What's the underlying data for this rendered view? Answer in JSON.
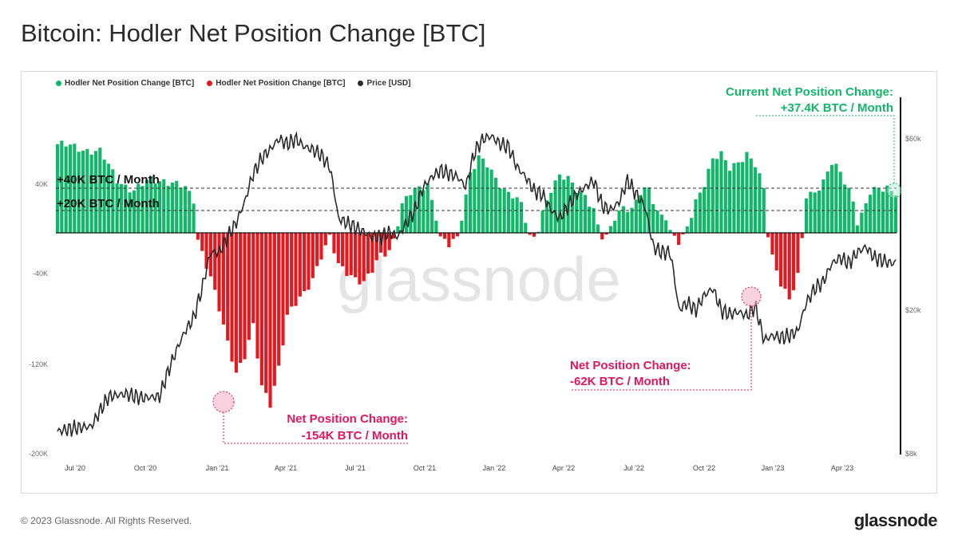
{
  "title": "Bitcoin: Hodler Net Position Change [BTC]",
  "footer": {
    "copyright": "© 2023 Glassnode. All Rights Reserved.",
    "logo": "glassnode"
  },
  "watermark": "glassnode",
  "colors": {
    "positive": "#11b86a",
    "negative": "#e3191f",
    "price": "#2a2a2a",
    "annotation_red": "#e0165e",
    "annotation_green": "#13b56b"
  },
  "chart_data": {
    "type": "bar",
    "legend": [
      {
        "name": "Hodler Net Position Change [BTC]",
        "color": "#11b86a"
      },
      {
        "name": "Hodler Net Position Change [BTC]",
        "color": "#e3191f"
      },
      {
        "name": "Price [USD]",
        "color": "#2a2a2a"
      }
    ],
    "x_ticks": [
      "Jul '20",
      "Oct '20",
      "Jan '21",
      "Apr '21",
      "Jul '21",
      "Oct '21",
      "Jan '22",
      "Apr '22",
      "Jul '22",
      "Oct '22",
      "Jan '23",
      "Apr '23"
    ],
    "y_left_ticks": [
      "40K",
      "-40K",
      "-120K",
      "-200K"
    ],
    "y_right_ticks": [
      "$60k",
      "$20k",
      "$8k"
    ],
    "ylim_left": [
      -200000,
      80000
    ],
    "reference_lines": [
      "+40K BTC / Month",
      "+20K BTC / Month"
    ],
    "annotations": [
      {
        "line1": "Net Position Change:",
        "line2": "-154K BTC / Month"
      },
      {
        "line1": "Net Position Change:",
        "line2": "-62K BTC / Month"
      },
      {
        "line1": "Current Net Position Change:",
        "line2": "+37.4K BTC / Month"
      }
    ],
    "net_position_anchors": [
      [
        0,
        80
      ],
      [
        10,
        73
      ],
      [
        14,
        48
      ],
      [
        18,
        38
      ],
      [
        22,
        48
      ],
      [
        25,
        48
      ],
      [
        30,
        40
      ],
      [
        32,
        30
      ],
      [
        33,
        -5
      ],
      [
        36,
        -40
      ],
      [
        40,
        -100
      ],
      [
        42,
        -125
      ],
      [
        44,
        -110
      ],
      [
        46,
        -85
      ],
      [
        48,
        -140
      ],
      [
        50,
        -154
      ],
      [
        52,
        -120
      ],
      [
        54,
        -75
      ],
      [
        56,
        -65
      ],
      [
        58,
        -55
      ],
      [
        60,
        -40
      ],
      [
        62,
        -20
      ],
      [
        64,
        -5
      ],
      [
        66,
        -30
      ],
      [
        68,
        -35
      ],
      [
        70,
        -40
      ],
      [
        72,
        -45
      ],
      [
        74,
        -35
      ],
      [
        76,
        -20
      ],
      [
        78,
        -15
      ],
      [
        79,
        -5
      ],
      [
        81,
        25
      ],
      [
        83,
        35
      ],
      [
        85,
        40
      ],
      [
        87,
        45
      ],
      [
        88,
        30
      ],
      [
        89,
        15
      ],
      [
        90,
        -5
      ],
      [
        92,
        -12
      ],
      [
        94,
        -5
      ],
      [
        95,
        15
      ],
      [
        97,
        55
      ],
      [
        99,
        68
      ],
      [
        101,
        60
      ],
      [
        103,
        48
      ],
      [
        105,
        40
      ],
      [
        107,
        35
      ],
      [
        109,
        25
      ],
      [
        110,
        10
      ],
      [
        111,
        -5
      ],
      [
        112,
        -5
      ],
      [
        113,
        5
      ],
      [
        114,
        20
      ],
      [
        116,
        40
      ],
      [
        118,
        50
      ],
      [
        120,
        48
      ],
      [
        122,
        40
      ],
      [
        124,
        35
      ],
      [
        126,
        20
      ],
      [
        127,
        5
      ],
      [
        128,
        -5
      ],
      [
        129,
        -5
      ],
      [
        131,
        15
      ],
      [
        133,
        25
      ],
      [
        135,
        20
      ],
      [
        137,
        35
      ],
      [
        139,
        40
      ],
      [
        141,
        20
      ],
      [
        143,
        15
      ],
      [
        144,
        0
      ],
      [
        146,
        -10
      ],
      [
        147,
        -5
      ],
      [
        148,
        5
      ],
      [
        150,
        30
      ],
      [
        152,
        45
      ],
      [
        154,
        65
      ],
      [
        156,
        70
      ],
      [
        158,
        60
      ],
      [
        160,
        65
      ],
      [
        162,
        70
      ],
      [
        164,
        60
      ],
      [
        166,
        40
      ],
      [
        167,
        0
      ],
      [
        168,
        -20
      ],
      [
        170,
        -45
      ],
      [
        172,
        -62
      ],
      [
        174,
        -40
      ],
      [
        175,
        -5
      ],
      [
        176,
        35
      ],
      [
        178,
        38
      ],
      [
        180,
        45
      ],
      [
        182,
        62
      ],
      [
        184,
        55
      ],
      [
        186,
        40
      ],
      [
        187,
        30
      ],
      [
        188,
        10
      ],
      [
        189,
        15
      ],
      [
        191,
        35
      ],
      [
        193,
        40
      ],
      [
        195,
        42
      ],
      [
        197,
        37
      ]
    ],
    "price_anchors": [
      [
        0,
        9.2
      ],
      [
        4,
        9.4
      ],
      [
        8,
        9.5
      ],
      [
        12,
        11.5
      ],
      [
        16,
        11.7
      ],
      [
        20,
        11.4
      ],
      [
        24,
        11.5
      ],
      [
        26,
        13.5
      ],
      [
        28,
        15.5
      ],
      [
        30,
        17.5
      ],
      [
        32,
        19
      ],
      [
        34,
        23
      ],
      [
        36,
        29
      ],
      [
        38,
        29
      ],
      [
        40,
        32
      ],
      [
        42,
        35
      ],
      [
        44,
        40
      ],
      [
        46,
        48
      ],
      [
        48,
        53
      ],
      [
        50,
        56
      ],
      [
        52,
        60
      ],
      [
        54,
        58
      ],
      [
        56,
        60
      ],
      [
        58,
        57
      ],
      [
        60,
        56
      ],
      [
        62,
        54
      ],
      [
        64,
        50
      ],
      [
        66,
        36
      ],
      [
        68,
        35
      ],
      [
        70,
        34
      ],
      [
        72,
        33
      ],
      [
        74,
        32
      ],
      [
        76,
        32
      ],
      [
        78,
        33
      ],
      [
        80,
        32
      ],
      [
        82,
        35
      ],
      [
        84,
        38
      ],
      [
        86,
        44
      ],
      [
        88,
        47
      ],
      [
        90,
        49
      ],
      [
        92,
        48
      ],
      [
        94,
        47
      ],
      [
        96,
        44
      ],
      [
        98,
        55
      ],
      [
        100,
        60
      ],
      [
        102,
        61
      ],
      [
        104,
        58
      ],
      [
        106,
        57
      ],
      [
        108,
        50
      ],
      [
        110,
        47
      ],
      [
        112,
        43
      ],
      [
        114,
        42
      ],
      [
        116,
        38
      ],
      [
        118,
        36
      ],
      [
        120,
        39
      ],
      [
        122,
        42
      ],
      [
        124,
        44
      ],
      [
        126,
        46
      ],
      [
        128,
        39
      ],
      [
        130,
        38
      ],
      [
        132,
        40
      ],
      [
        134,
        46
      ],
      [
        136,
        42
      ],
      [
        138,
        39
      ],
      [
        140,
        30
      ],
      [
        142,
        29
      ],
      [
        144,
        29
      ],
      [
        146,
        20
      ],
      [
        148,
        21
      ],
      [
        150,
        20
      ],
      [
        152,
        22
      ],
      [
        154,
        23
      ],
      [
        156,
        20
      ],
      [
        158,
        19.5
      ],
      [
        160,
        19.8
      ],
      [
        162,
        19.3
      ],
      [
        164,
        20.5
      ],
      [
        166,
        16.5
      ],
      [
        168,
        17
      ],
      [
        170,
        16.8
      ],
      [
        172,
        17
      ],
      [
        174,
        17.5
      ],
      [
        176,
        21
      ],
      [
        178,
        23
      ],
      [
        180,
        24
      ],
      [
        182,
        27
      ],
      [
        184,
        28
      ],
      [
        186,
        27
      ],
      [
        188,
        29
      ],
      [
        190,
        30
      ],
      [
        192,
        28
      ],
      [
        194,
        27.5
      ],
      [
        196,
        27
      ],
      [
        197,
        27.2
      ]
    ]
  }
}
